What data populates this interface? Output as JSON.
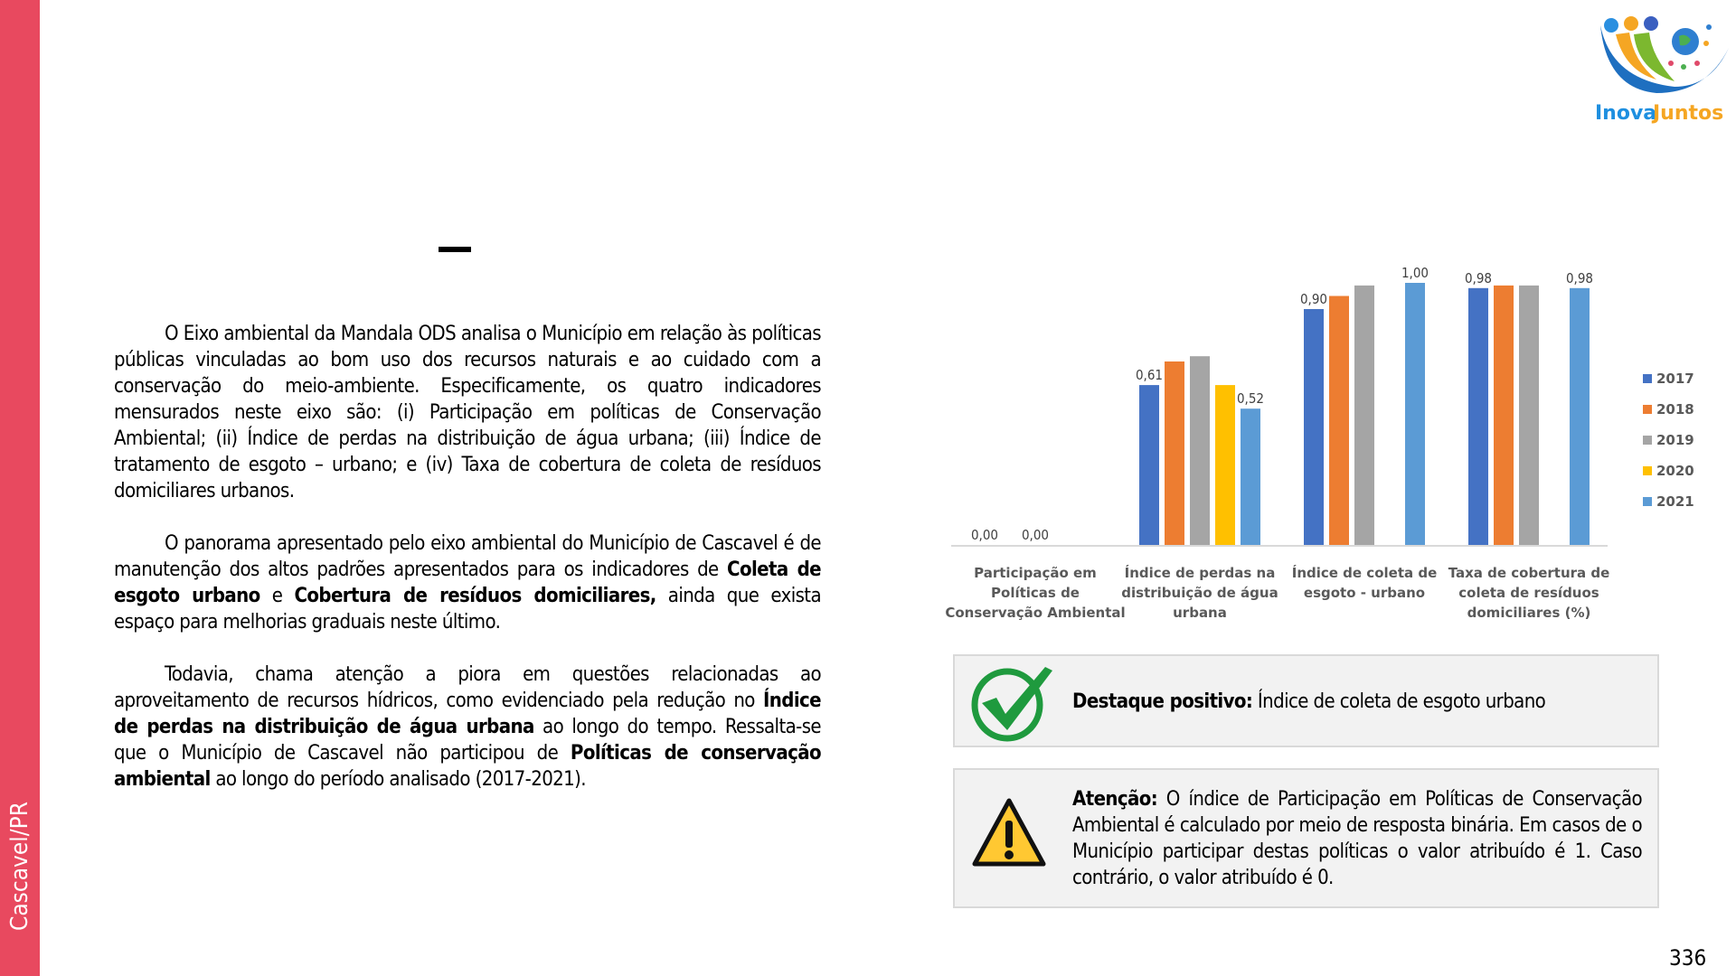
{
  "sidebar": {
    "label": "Cascavel/PR",
    "color": "#E8495F"
  },
  "logo": {
    "text_a": "Inova",
    "text_b": "Juntos"
  },
  "title_dash": "–",
  "body": {
    "p1": "O Eixo ambiental da Mandala ODS analisa o Município em relação às políticas públicas vinculadas ao bom uso dos recursos naturais e ao cuidado com a conservação do meio-ambiente. Especificamente, os quatro indicadores mensurados neste eixo são: (i) Participação em políticas de Conservação Ambiental; (ii) Índice de perdas na distribuição de água urbana; (iii) Índice de tratamento de esgoto – urbano; e (iv) Taxa de cobertura de coleta de resíduos domiciliares urbanos.",
    "p2_a": "O panorama apresentado pelo eixo ambiental do Município de Cascavel é de manutenção dos altos padrões apresentados para os indicadores de ",
    "p2_b": "Coleta de esgoto urbano",
    "p2_c": " e ",
    "p2_d": "Cobertura de resíduos domiciliares,",
    "p2_e": " ainda que exista espaço para melhorias graduais neste último.",
    "p3_a": "Todavia, chama atenção a piora em questões relacionadas ao aproveitamento de recursos hídricos, como evidenciado pela redução no ",
    "p3_b": "Índice de perdas na distribuição de água urbana",
    "p3_c": " ao longo do tempo. Ressalta-se que o Município de Cascavel não participou de ",
    "p3_d": "Políticas de conservação ambiental",
    "p3_e": " ao longo do período analisado (2017-2021)."
  },
  "chart_data": {
    "type": "bar",
    "categories": [
      [
        "Participação em",
        "Políticas de",
        "Conservação Ambiental"
      ],
      [
        "Índice de perdas na",
        "distribuição de água",
        "urbana"
      ],
      [
        "Índice de coleta de",
        "esgoto - urbano"
      ],
      [
        "Taxa de cobertura de",
        "coleta de resíduos",
        "domiciliares (%)"
      ]
    ],
    "series": [
      {
        "name": "2017",
        "color": "#4472C4",
        "values": [
          0,
          0.61,
          0.9,
          0.98
        ],
        "labels": [
          "0,00",
          "0,61",
          "0,90",
          "0,98"
        ]
      },
      {
        "name": "2018",
        "color": "#ED7D31",
        "values": [
          0,
          0.7,
          0.95,
          0.99
        ],
        "labels": [
          null,
          null,
          null,
          null
        ]
      },
      {
        "name": "2019",
        "color": "#A5A5A5",
        "values": [
          0,
          0.72,
          0.99,
          0.99
        ],
        "labels": [
          "0,00",
          null,
          null,
          null
        ]
      },
      {
        "name": "2020",
        "color": "#FFC000",
        "values": [
          0,
          0.61,
          null,
          null
        ],
        "labels": [
          null,
          null,
          null,
          null
        ]
      },
      {
        "name": "2021",
        "color": "#5B9BD5",
        "values": [
          0,
          0.52,
          1.0,
          0.98
        ],
        "labels": [
          null,
          "0,52",
          "1,00",
          "0,98"
        ]
      }
    ],
    "ylim": [
      0,
      1
    ],
    "grid": false,
    "legend": "right"
  },
  "positive": {
    "label": "Destaque positivo:",
    "text": " Índice de coleta de esgoto urbano"
  },
  "attention": {
    "label": "Atenção:",
    "text": " O índice de Participação em Políticas de Conservação Ambiental é calculado por meio de resposta binária. Em casos de o Município participar destas políticas o valor atribuído é 1. Caso contrário, o valor atribuído é 0."
  },
  "page_number": "336"
}
